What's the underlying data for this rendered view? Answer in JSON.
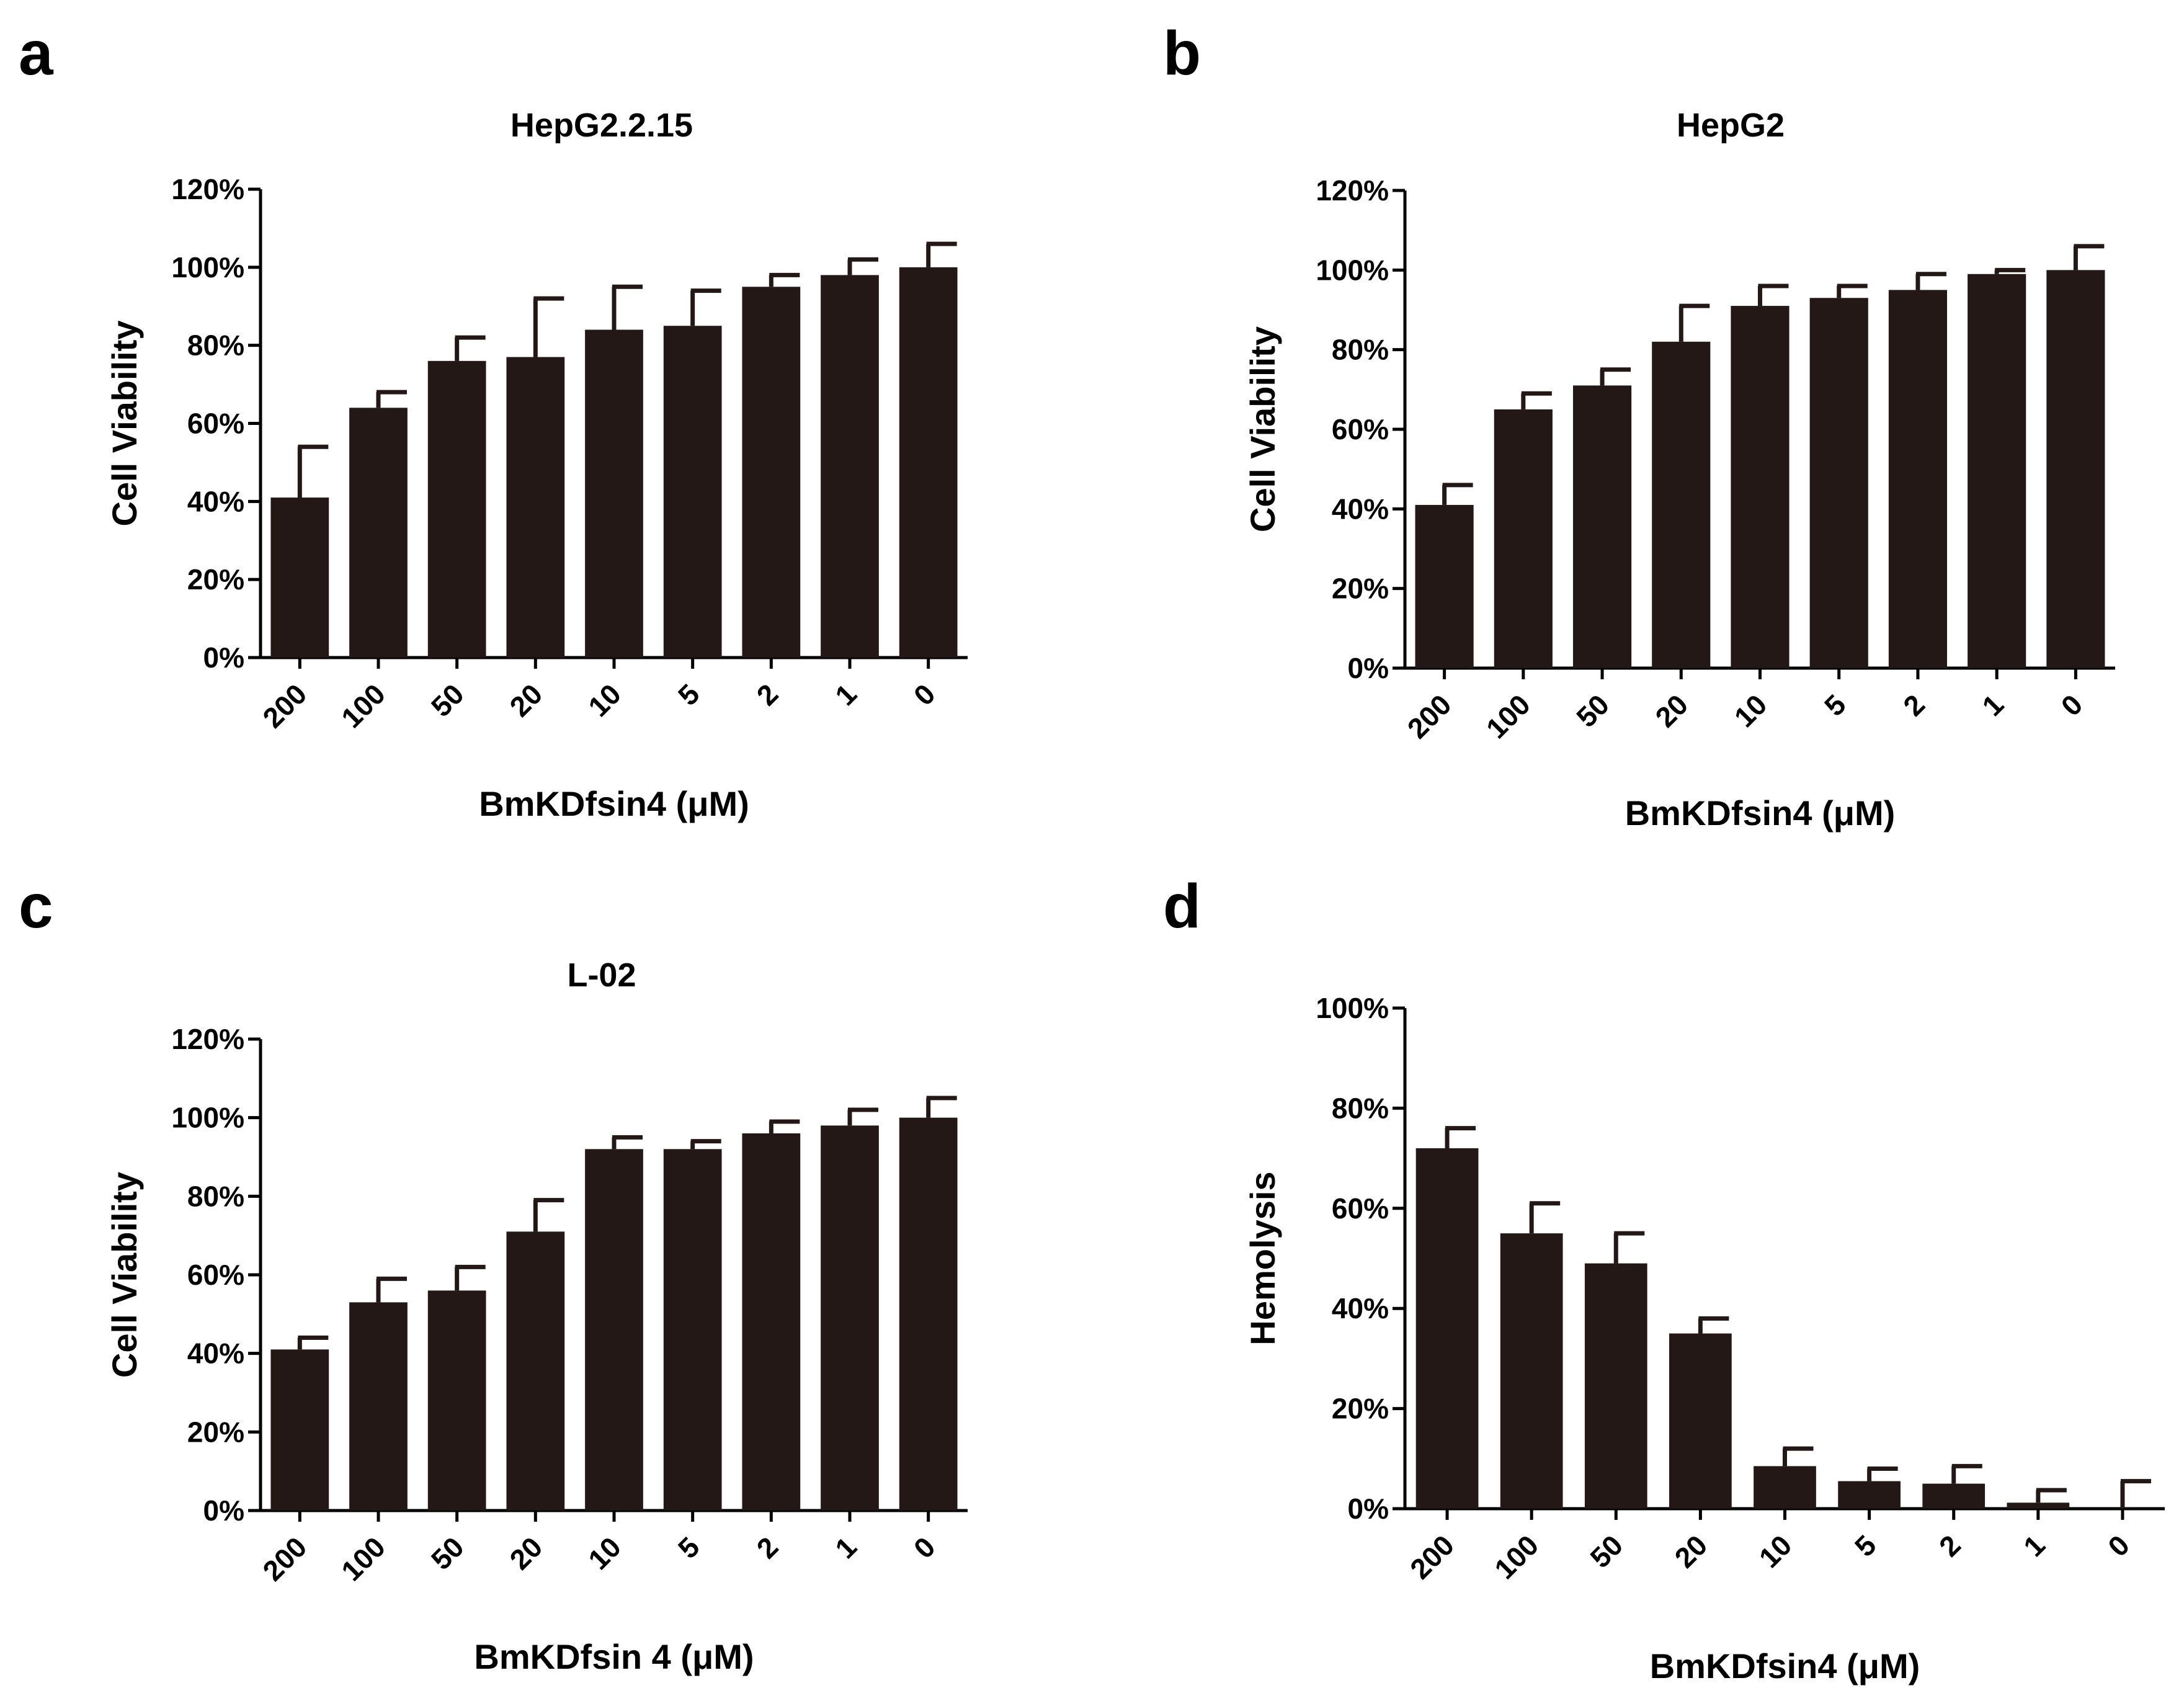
{
  "chart_data": [
    {
      "panel": "a",
      "type": "bar",
      "title": "HepG2.2.15",
      "xlabel": "BmKDfsin4 (μM)",
      "ylabel": "Cell Viability",
      "categories": [
        "200",
        "100",
        "50",
        "20",
        "10",
        "5",
        "2",
        "1",
        "0"
      ],
      "values": [
        41,
        64,
        76,
        77,
        84,
        85,
        95,
        98,
        100
      ],
      "errors": [
        13,
        4,
        6,
        15,
        11,
        9,
        3,
        4,
        6
      ],
      "yticks": [
        "0%",
        "20%",
        "40%",
        "60%",
        "80%",
        "100%",
        "120%"
      ],
      "ylim": [
        0,
        120
      ],
      "bar_color": "#231815"
    },
    {
      "panel": "b",
      "type": "bar",
      "title": "HepG2",
      "xlabel": "BmKDfsin4 (μM)",
      "ylabel": "Cell Viability",
      "categories": [
        "200",
        "100",
        "50",
        "20",
        "10",
        "5",
        "2",
        "1",
        "0"
      ],
      "values": [
        41,
        65,
        71,
        82,
        91,
        93,
        95,
        99,
        100
      ],
      "errors": [
        5,
        4,
        4,
        9,
        5,
        3,
        4,
        1,
        6
      ],
      "yticks": [
        "0%",
        "20%",
        "40%",
        "60%",
        "80%",
        "100%",
        "120%"
      ],
      "ylim": [
        0,
        120
      ],
      "bar_color": "#231815"
    },
    {
      "panel": "c",
      "type": "bar",
      "title": "L-02",
      "xlabel": "BmKDfsin 4 (μM)",
      "ylabel": "Cell Viability",
      "categories": [
        "200",
        "100",
        "50",
        "20",
        "10",
        "5",
        "2",
        "1",
        "0"
      ],
      "values": [
        41,
        53,
        56,
        71,
        92,
        92,
        96,
        98,
        100
      ],
      "errors": [
        3,
        6,
        6,
        8,
        3,
        2,
        3,
        4,
        5
      ],
      "yticks": [
        "0%",
        "20%",
        "40%",
        "60%",
        "80%",
        "100%",
        "120%"
      ],
      "ylim": [
        0,
        120
      ],
      "bar_color": "#231815"
    },
    {
      "panel": "d",
      "type": "bar",
      "title": "",
      "xlabel": "BmKDfsin4 (μM)",
      "ylabel": "Hemolysis",
      "categories": [
        "200",
        "100",
        "50",
        "20",
        "10",
        "5",
        "2",
        "1",
        "0"
      ],
      "values": [
        72,
        55,
        49,
        35,
        8.5,
        5.5,
        5,
        1.2,
        0
      ],
      "errors": [
        4,
        6,
        6,
        3,
        3.5,
        2.5,
        3.5,
        2.5,
        5.5
      ],
      "yticks": [
        "0%",
        "20%",
        "40%",
        "60%",
        "80%",
        "100%"
      ],
      "ylim": [
        0,
        100
      ],
      "bar_color": "#231815"
    }
  ]
}
